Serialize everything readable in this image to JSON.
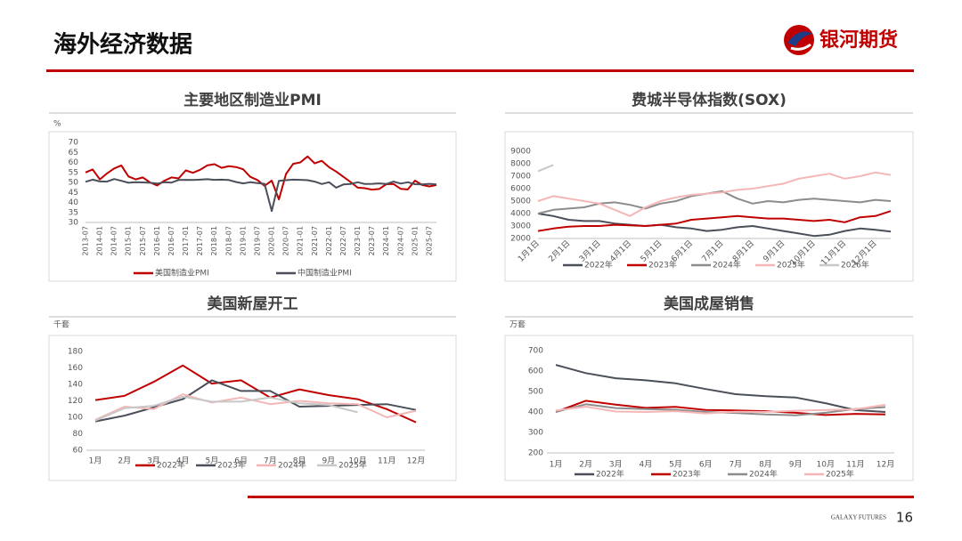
{
  "header": {
    "title": "海外经济数据",
    "logo": "银河期货"
  },
  "footer": {
    "brand": "GALAXY FUTURES",
    "page": "16"
  },
  "chart_data": [
    {
      "type": "line",
      "title": "主要地区制造业PMI",
      "y_label": "%",
      "categories": [
        "2013-07",
        null,
        "2014-01",
        null,
        "2014-07",
        null,
        "2015-01",
        null,
        "2015-07",
        null,
        "2016-01",
        null,
        "2016-07",
        null,
        "2017-01",
        null,
        "2017-07",
        null,
        "2018-01",
        null,
        "2018-07",
        null,
        "2019-01",
        null,
        "2019-07",
        null,
        "2020-01",
        null,
        "2020-07",
        null,
        "2021-01",
        null,
        "2021-07",
        null,
        "2022-01",
        null,
        "2022-07",
        null,
        "2023-01",
        null,
        "2023-07",
        null,
        "2024-01",
        null,
        "2024-07",
        null,
        "2025-01",
        null,
        "2025-07",
        null
      ],
      "series": [
        {
          "name": "美国制造业PMI",
          "color": "#c00000",
          "values": [
            55,
            56.5,
            51.5,
            54.5,
            57,
            58.5,
            53,
            51.5,
            52.5,
            50,
            48.5,
            50.8,
            52.5,
            52,
            56,
            54.8,
            56.3,
            58.5,
            59.1,
            57.3,
            58.1,
            57.7,
            56.6,
            52.8,
            51.2,
            48.3,
            50.9,
            41.5,
            54.2,
            59.3,
            60,
            63,
            59.5,
            60.8,
            57.6,
            55.4,
            52.8,
            50.2,
            47.4,
            47.1,
            46.4,
            46.7,
            49.1,
            49.2,
            46.8,
            46.5,
            50.9,
            48.7,
            48,
            48.7
          ]
        },
        {
          "name": "中国制造业PMI",
          "color": "#4a4f5a",
          "values": [
            50.3,
            51.4,
            50.5,
            50.4,
            51.7,
            50.8,
            49.8,
            50.1,
            50.0,
            49.8,
            49.4,
            50.1,
            49.9,
            51.2,
            51.3,
            51.2,
            51.4,
            51.6,
            51.3,
            51.4,
            51.2,
            50.2,
            49.5,
            50.1,
            49.7,
            49.3,
            35.7,
            50.8,
            51.1,
            51.4,
            51.3,
            51.1,
            50.4,
            49.2,
            50.1,
            47.4,
            49.0,
            49.2,
            50.1,
            49.2,
            49.3,
            49.5,
            49.2,
            50.4,
            49.4,
            50.1,
            49.1,
            49.0,
            49.3,
            49.0
          ]
        }
      ],
      "ylim": [
        30,
        70
      ],
      "yticks": [
        30,
        35,
        40,
        45,
        50,
        55,
        60,
        65,
        70
      ],
      "x_label_rotation": -90,
      "legend": "bottom",
      "grid": false
    },
    {
      "type": "line",
      "title": "费城半导体指数(SOX)",
      "categories": [
        "1月1日",
        null,
        "2月1日",
        null,
        "3月1日",
        null,
        "4月1日",
        null,
        "5月1日",
        null,
        "6月1日",
        null,
        "7月1日",
        null,
        "8月1日",
        null,
        "9月1日",
        null,
        "10月1日",
        null,
        "11月1日",
        null,
        "12月1日",
        null
      ],
      "series": [
        {
          "name": "2022年",
          "color": "#4a4f5a",
          "values": [
            4000,
            3800,
            3500,
            3400,
            3400,
            3200,
            3100,
            3000,
            3100,
            2900,
            2800,
            2600,
            2700,
            2900,
            3000,
            2800,
            2600,
            2400,
            2200,
            2300,
            2600,
            2800,
            2700,
            2550
          ]
        },
        {
          "name": "2023年",
          "color": "#c00000",
          "values": [
            2600,
            2800,
            2950,
            3000,
            3000,
            3100,
            3050,
            3000,
            3100,
            3200,
            3500,
            3600,
            3700,
            3800,
            3700,
            3600,
            3600,
            3500,
            3400,
            3500,
            3300,
            3700,
            3800,
            4200
          ]
        },
        {
          "name": "2024年",
          "color": "#8c8c8c",
          "values": [
            4000,
            4300,
            4400,
            4500,
            4800,
            4900,
            4700,
            4400,
            4800,
            5000,
            5400,
            5600,
            5800,
            5200,
            4800,
            5000,
            4900,
            5100,
            5200,
            5100,
            5000,
            4900,
            5100,
            5000
          ]
        },
        {
          "name": "2025年",
          "color": "#f4b6b6",
          "values": [
            5000,
            5400,
            5200,
            5000,
            4800,
            4300,
            3800,
            4500,
            5000,
            5300,
            5500,
            5600,
            5700,
            5900,
            6000,
            6200,
            6400,
            6800,
            7000,
            7200,
            6800,
            7000,
            7300,
            7100
          ]
        },
        {
          "name": "2026年",
          "color": "#c8c8c8",
          "values": [
            7400,
            7900,
            null,
            null,
            null,
            null,
            null,
            null,
            null,
            null,
            null,
            null,
            null,
            null,
            null,
            null,
            null,
            null,
            null,
            null,
            null,
            null,
            null,
            null
          ]
        }
      ],
      "ylim": [
        2000,
        9000
      ],
      "yticks": [
        2000,
        3000,
        4000,
        5000,
        6000,
        7000,
        8000,
        9000
      ],
      "x_label_rotation": -45,
      "legend": "bottom",
      "grid": false
    },
    {
      "type": "line",
      "title": "美国新屋开工",
      "y_label": "千套",
      "categories": [
        "1月",
        "2月",
        "3月",
        "4月",
        "5月",
        "6月",
        "7月",
        "8月",
        "9月",
        "10月",
        "11月",
        "12月"
      ],
      "series": [
        {
          "name": "2022年",
          "color": "#c00000",
          "values": [
            121,
            126,
            143,
            163,
            141,
            145,
            124,
            134,
            127,
            122,
            110,
            94
          ]
        },
        {
          "name": "2023年",
          "color": "#4a4f5a",
          "values": [
            95,
            102,
            112,
            122,
            145,
            132,
            132,
            113,
            114,
            115,
            116,
            109
          ]
        },
        {
          "name": "2024年",
          "color": "#f4b6b6",
          "values": [
            97,
            113,
            110,
            128,
            118,
            124,
            116,
            120,
            117,
            116,
            100,
            108
          ]
        },
        {
          "name": "2025年",
          "color": "#c8c8c8",
          "values": [
            96,
            111,
            114,
            125,
            119,
            119,
            124,
            117,
            115,
            106,
            null,
            null
          ]
        }
      ],
      "ylim": [
        60,
        180
      ],
      "yticks": [
        60,
        80,
        100,
        120,
        140,
        160,
        180
      ],
      "x_label_rotation": 0,
      "legend": "bottom",
      "grid": false
    },
    {
      "type": "line",
      "title": "美国成屋销售",
      "y_label": "万套",
      "categories": [
        "1月",
        "2月",
        "3月",
        "4月",
        "5月",
        "6月",
        "7月",
        "8月",
        "9月",
        "10月",
        "11月",
        "12月"
      ],
      "series": [
        {
          "name": "2022年",
          "color": "#4a4f5a",
          "values": [
            630,
            590,
            565,
            555,
            540,
            512,
            487,
            477,
            471,
            443,
            409,
            400
          ]
        },
        {
          "name": "2023年",
          "color": "#c00000",
          "values": [
            400,
            455,
            436,
            420,
            425,
            410,
            408,
            404,
            396,
            385,
            391,
            388
          ]
        },
        {
          "name": "2024年",
          "color": "#8c8c8c",
          "values": [
            400,
            438,
            419,
            414,
            411,
            400,
            395,
            388,
            384,
            396,
            415,
            424
          ]
        },
        {
          "name": "2025年",
          "color": "#f4b6b6",
          "values": [
            408,
            426,
            402,
            400,
            404,
            393,
            401,
            400,
            406,
            410,
            413,
            435
          ]
        }
      ],
      "ylim": [
        200,
        700
      ],
      "yticks": [
        200,
        300,
        400,
        500,
        600,
        700
      ],
      "x_label_rotation": 0,
      "legend": "bottom",
      "grid": false
    }
  ]
}
